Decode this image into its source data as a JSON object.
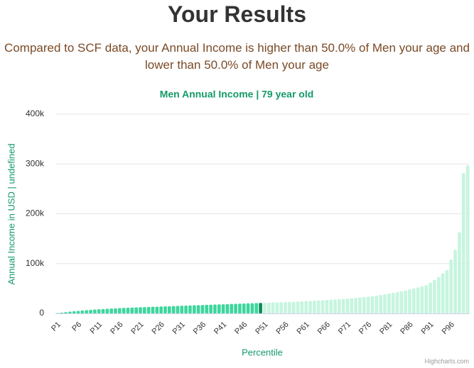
{
  "header": {
    "title": "Your Results",
    "subtitle": "Compared to SCF data, your Annual Income is higher than 50.0% of Men your age and lower than 50.0% of Men your age"
  },
  "chart_data": {
    "type": "bar",
    "title": "Men Annual Income | 79 year old",
    "x_label": "Percentile",
    "y_label": "Annual Income in USD | undefined",
    "credit": "Highcharts.com",
    "categories": [
      "P1",
      null,
      null,
      null,
      null,
      "P6",
      null,
      null,
      null,
      null,
      "P11",
      null,
      null,
      null,
      null,
      "P16",
      null,
      null,
      null,
      null,
      "P21",
      null,
      null,
      null,
      null,
      "P26",
      null,
      null,
      null,
      null,
      "P31",
      null,
      null,
      null,
      null,
      "P36",
      null,
      null,
      null,
      null,
      "P41",
      null,
      null,
      null,
      null,
      "P46",
      null,
      null,
      null,
      null,
      "P51",
      null,
      null,
      null,
      null,
      "P56",
      null,
      null,
      null,
      null,
      "P61",
      null,
      null,
      null,
      null,
      "P66",
      null,
      null,
      null,
      null,
      "P71",
      null,
      null,
      null,
      null,
      "P76",
      null,
      null,
      null,
      null,
      "P81",
      null,
      null,
      null,
      null,
      "P86",
      null,
      null,
      null,
      null,
      "P91",
      null,
      null,
      null,
      null,
      "P96",
      null,
      null,
      null,
      null
    ],
    "values": [
      500,
      1500,
      2500,
      3500,
      4500,
      5000,
      5800,
      6500,
      7200,
      7800,
      8300,
      8800,
      9300,
      9800,
      10200,
      10600,
      11000,
      11400,
      11800,
      12100,
      12400,
      12700,
      13000,
      13300,
      13600,
      13900,
      14200,
      14500,
      14800,
      15100,
      15400,
      15700,
      16000,
      16300,
      16600,
      16900,
      17200,
      17500,
      17800,
      18100,
      18400,
      18700,
      19000,
      19300,
      19600,
      19900,
      20200,
      20500,
      20800,
      21000,
      21300,
      21600,
      21900,
      22200,
      22500,
      22800,
      23100,
      23500,
      23900,
      24300,
      24700,
      25100,
      25500,
      26000,
      26500,
      27000,
      27500,
      28000,
      28600,
      29200,
      29800,
      30500,
      31200,
      32000,
      32800,
      33700,
      34700,
      35800,
      37000,
      38300,
      39700,
      41200,
      42800,
      44500,
      46300,
      48200,
      50200,
      52300,
      54500,
      57000,
      62000,
      67000,
      73000,
      80000,
      87000,
      108000,
      128000,
      163000,
      282000,
      297000
    ],
    "colors": [
      "#3dd69c",
      "#3dd69c",
      "#3dd69c",
      "#3dd69c",
      "#3dd69c",
      "#3dd69c",
      "#3dd69c",
      "#3dd69c",
      "#3dd69c",
      "#3dd69c",
      "#3dd69c",
      "#3dd69c",
      "#3dd69c",
      "#3dd69c",
      "#3dd69c",
      "#3dd69c",
      "#3dd69c",
      "#3dd69c",
      "#3dd69c",
      "#3dd69c",
      "#3dd69c",
      "#3dd69c",
      "#3dd69c",
      "#3dd69c",
      "#3dd69c",
      "#3dd69c",
      "#3dd69c",
      "#3dd69c",
      "#3dd69c",
      "#3dd69c",
      "#3dd69c",
      "#3dd69c",
      "#3dd69c",
      "#3dd69c",
      "#3dd69c",
      "#3dd69c",
      "#3dd69c",
      "#3dd69c",
      "#3dd69c",
      "#3dd69c",
      "#3dd69c",
      "#3dd69c",
      "#3dd69c",
      "#3dd69c",
      "#3dd69c",
      "#3dd69c",
      "#3dd69c",
      "#3dd69c",
      "#3dd69c",
      "#0b8a58",
      "#c6f5df",
      "#c6f5df",
      "#c6f5df",
      "#c6f5df",
      "#c6f5df",
      "#c6f5df",
      "#c6f5df",
      "#c6f5df",
      "#c6f5df",
      "#c6f5df",
      "#c6f5df",
      "#c6f5df",
      "#c6f5df",
      "#c6f5df",
      "#c6f5df",
      "#c6f5df",
      "#c6f5df",
      "#c6f5df",
      "#c6f5df",
      "#c6f5df",
      "#c6f5df",
      "#c6f5df",
      "#c6f5df",
      "#c6f5df",
      "#c6f5df",
      "#c6f5df",
      "#c6f5df",
      "#c6f5df",
      "#c6f5df",
      "#c6f5df",
      "#c6f5df",
      "#c6f5df",
      "#c6f5df",
      "#c6f5df",
      "#c6f5df",
      "#c6f5df",
      "#c6f5df",
      "#c6f5df",
      "#c6f5df",
      "#c6f5df",
      "#c6f5df",
      "#c6f5df",
      "#c6f5df",
      "#c6f5df",
      "#c6f5df",
      "#c6f5df",
      "#c6f5df",
      "#c6f5df",
      "#c6f5df",
      "#c6f5df"
    ],
    "ylim": [
      0,
      400000
    ],
    "yticks": [
      0,
      {
        "value": 100000,
        "label": "100k"
      },
      {
        "value": 200000,
        "label": "200k"
      },
      {
        "value": 300000,
        "label": "300k"
      },
      {
        "value": 400000,
        "label": "400k"
      }
    ],
    "grid": true
  }
}
